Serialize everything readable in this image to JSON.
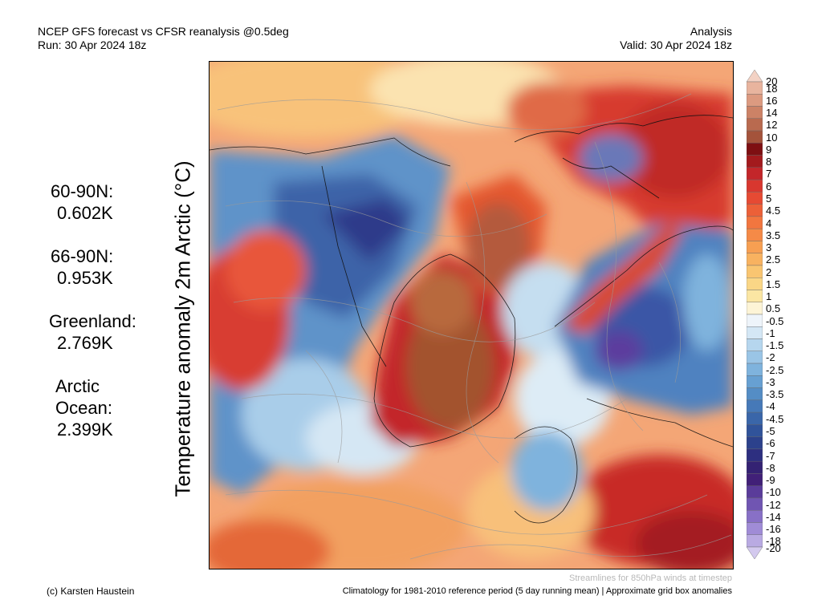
{
  "header": {
    "title": "NCEP GFS forecast vs CFSR reanalysis @0.5deg",
    "run": "Run: 30 Apr 2024 18z",
    "analysis_label": "Analysis",
    "valid": "Valid: 30 Apr 2024 18z"
  },
  "map": {
    "ylabel": "Temperature anomaly 2m Arctic (°C)"
  },
  "stats": [
    {
      "label": "60-90N:",
      "value": "0.602K"
    },
    {
      "label": "66-90N:",
      "value": "0.953K"
    },
    {
      "label": "Greenland:",
      "value": "2.769K"
    },
    {
      "label": "Arctic",
      "label2": "Ocean:",
      "value": "2.399K"
    }
  ],
  "colorbar": {
    "labels": [
      "20",
      "18",
      "16",
      "14",
      "12",
      "10",
      "9",
      "8",
      "7",
      "6",
      "5",
      "4.5",
      "4",
      "3.5",
      "3",
      "2.5",
      "2",
      "1.5",
      "1",
      "0.5",
      "-0.5",
      "-1",
      "-1.5",
      "-2",
      "-2.5",
      "-3",
      "-3.5",
      "-4",
      "-4.5",
      "-5",
      "-6",
      "-7",
      "-8",
      "-9",
      "-10",
      "-12",
      "-14",
      "-16",
      "-18",
      "-20"
    ],
    "colors": [
      "#f3d2c4",
      "#e8b49e",
      "#dc9a80",
      "#cc8266",
      "#b96a4f",
      "#a4533b",
      "#7e0f12",
      "#a31a1d",
      "#c3262a",
      "#d8372f",
      "#e64a33",
      "#ec6038",
      "#f2763f",
      "#f58a47",
      "#f79f52",
      "#f8b260",
      "#f9c571",
      "#fad686",
      "#fbe6a3",
      "#fdf4d6",
      "#eef4fa",
      "#d4e7f5",
      "#b6d6ee",
      "#9ac5e6",
      "#7fb3dd",
      "#67a0d2",
      "#548dc5",
      "#4679b8",
      "#3a66a9",
      "#30539a",
      "#2c418c",
      "#2d2f80",
      "#342273",
      "#412078",
      "#5a3c9a",
      "#7055b2",
      "#8870c6",
      "#a08cd6",
      "#b9aae2",
      "#d3c9ee"
    ]
  },
  "footer": {
    "credit": "(c) Karsten Haustein",
    "streamlines": "Streamlines for 850hPa winds at timestep",
    "climatology": "Climatology for 1981-2010 reference period (5 day running mean) | Approximate grid box anomalies"
  }
}
